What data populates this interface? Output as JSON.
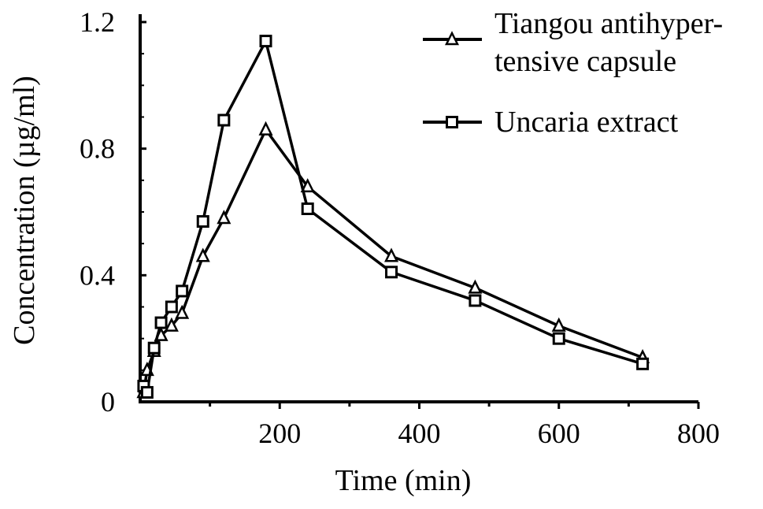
{
  "chart_data": {
    "type": "line",
    "title": "",
    "xlabel": "Time (min)",
    "ylabel": "Concentration (µg/ml)",
    "xlim": [
      0,
      800
    ],
    "ylim": [
      0,
      1.2
    ],
    "x_ticks": [
      200,
      400,
      600,
      800
    ],
    "x_tick_labels": [
      "200",
      "400",
      "600",
      "800"
    ],
    "y_ticks": [
      0,
      0.4,
      0.8,
      1.2
    ],
    "y_tick_labels": [
      "0",
      "0.4",
      "0.8",
      "1.2"
    ],
    "grid": false,
    "legend_position": "top-right",
    "series": [
      {
        "name": "Tiangou antihypertensive capsule",
        "legend_lines": [
          "Tiangou antihyper-",
          "tensive capsule"
        ],
        "marker": "triangle",
        "color": "#000000",
        "x": [
          5,
          10,
          20,
          30,
          45,
          60,
          90,
          120,
          180,
          240,
          360,
          480,
          600,
          720
        ],
        "y": [
          0.03,
          0.1,
          0.16,
          0.21,
          0.24,
          0.28,
          0.46,
          0.58,
          0.86,
          0.68,
          0.46,
          0.36,
          0.24,
          0.14
        ]
      },
      {
        "name": "Uncaria extract",
        "legend_lines": [
          "Uncaria extract"
        ],
        "marker": "square",
        "color": "#000000",
        "x": [
          5,
          10,
          20,
          30,
          45,
          60,
          90,
          120,
          180,
          240,
          360,
          480,
          600,
          720
        ],
        "y": [
          0.05,
          0.03,
          0.17,
          0.25,
          0.3,
          0.35,
          0.57,
          0.89,
          1.14,
          0.61,
          0.41,
          0.32,
          0.2,
          0.12
        ]
      }
    ]
  }
}
